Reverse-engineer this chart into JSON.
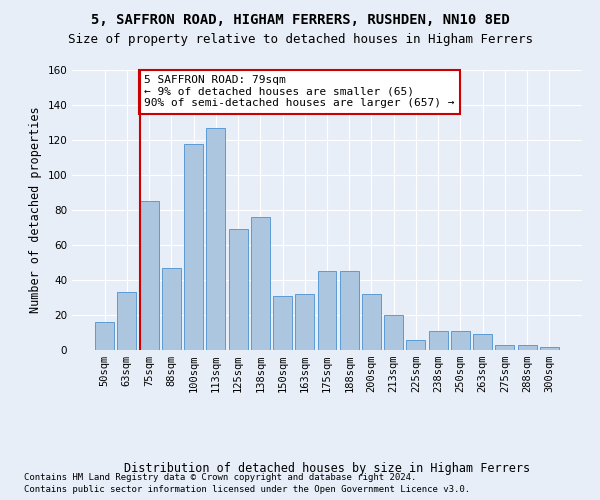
{
  "title_line1": "5, SAFFRON ROAD, HIGHAM FERRERS, RUSHDEN, NN10 8ED",
  "title_line2": "Size of property relative to detached houses in Higham Ferrers",
  "xlabel": "Distribution of detached houses by size in Higham Ferrers",
  "ylabel": "Number of detached properties",
  "bar_labels": [
    "50sqm",
    "63sqm",
    "75sqm",
    "88sqm",
    "100sqm",
    "113sqm",
    "125sqm",
    "138sqm",
    "150sqm",
    "163sqm",
    "175sqm",
    "188sqm",
    "200sqm",
    "213sqm",
    "225sqm",
    "238sqm",
    "250sqm",
    "263sqm",
    "275sqm",
    "288sqm",
    "300sqm"
  ],
  "bar_values": [
    16,
    33,
    85,
    47,
    118,
    127,
    69,
    76,
    31,
    32,
    45,
    45,
    32,
    20,
    6,
    11,
    11,
    9,
    3,
    3,
    2
  ],
  "bar_color": "#adc6e0",
  "bar_edge_color": "#5b9bd5",
  "vline_color": "#cc0000",
  "annotation_text": "5 SAFFRON ROAD: 79sqm\n← 9% of detached houses are smaller (65)\n90% of semi-detached houses are larger (657) →",
  "annotation_box_color": "#ffffff",
  "annotation_edge_color": "#cc0000",
  "ylim": [
    0,
    160
  ],
  "yticks": [
    0,
    20,
    40,
    60,
    80,
    100,
    120,
    140,
    160
  ],
  "background_color": "#e8eef7",
  "plot_bg_color": "#e8eef7",
  "footer_line1": "Contains HM Land Registry data © Crown copyright and database right 2024.",
  "footer_line2": "Contains public sector information licensed under the Open Government Licence v3.0.",
  "grid_color": "#ffffff",
  "title_fontsize": 10,
  "subtitle_fontsize": 9,
  "axis_label_fontsize": 8.5,
  "tick_fontsize": 7.5,
  "annotation_fontsize": 8,
  "footer_fontsize": 6.5
}
